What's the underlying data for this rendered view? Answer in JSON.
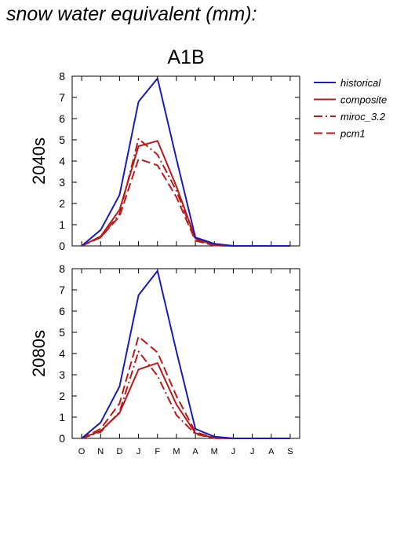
{
  "page": {
    "title": "snow water equivalent (mm):"
  },
  "chart_data": {
    "type": "line",
    "title": "A1B",
    "categories": [
      "O",
      "N",
      "D",
      "J",
      "F",
      "M",
      "A",
      "M",
      "J",
      "J",
      "A",
      "S"
    ],
    "ylim": [
      0,
      8
    ],
    "yticks": [
      0,
      1,
      2,
      3,
      4,
      5,
      6,
      7,
      8
    ],
    "grid": false,
    "legend_position": "right",
    "legend": [
      {
        "name": "historical",
        "color": "#1a1ab8",
        "dash": "solid"
      },
      {
        "name": "composite",
        "color": "#b81a1a",
        "dash": "solid"
      },
      {
        "name": "miroc_3.2",
        "color": "#b81a1a",
        "dash": "dashdot"
      },
      {
        "name": "pcm1",
        "color": "#b81a1a",
        "dash": "dashed"
      }
    ],
    "panels": [
      {
        "label": "2040s",
        "series": [
          {
            "name": "historical",
            "values": [
              0,
              0.75,
              2.4,
              6.8,
              7.9,
              4.1,
              0.4,
              0.1,
              0,
              0,
              0,
              0
            ]
          },
          {
            "name": "composite",
            "values": [
              0,
              0.45,
              1.7,
              4.7,
              4.95,
              2.8,
              0.35,
              0.03,
              0,
              0,
              0,
              0
            ]
          },
          {
            "name": "miroc_3.2",
            "values": [
              0,
              0.4,
              1.5,
              5.05,
              4.3,
              2.6,
              0.3,
              0.02,
              0,
              0,
              0,
              0
            ]
          },
          {
            "name": "pcm1",
            "values": [
              0,
              0.4,
              1.4,
              4.1,
              3.8,
              2.3,
              0.25,
              0.02,
              0,
              0,
              0,
              0
            ]
          }
        ]
      },
      {
        "label": "2080s",
        "series": [
          {
            "name": "historical",
            "values": [
              0,
              0.75,
              2.45,
              6.75,
              7.9,
              4.1,
              0.45,
              0.08,
              0,
              0,
              0,
              0
            ]
          },
          {
            "name": "composite",
            "values": [
              0,
              0.35,
              1.2,
              3.25,
              3.55,
              1.6,
              0.25,
              0.02,
              0,
              0,
              0,
              0
            ]
          },
          {
            "name": "miroc_3.2",
            "values": [
              0,
              0.3,
              1.25,
              4.1,
              2.95,
              1.1,
              0.2,
              0.01,
              0,
              0,
              0,
              0
            ]
          },
          {
            "name": "pcm1",
            "values": [
              0,
              0.45,
              1.65,
              4.8,
              4.05,
              2.0,
              0.3,
              0.02,
              0,
              0,
              0,
              0
            ]
          }
        ]
      }
    ]
  }
}
